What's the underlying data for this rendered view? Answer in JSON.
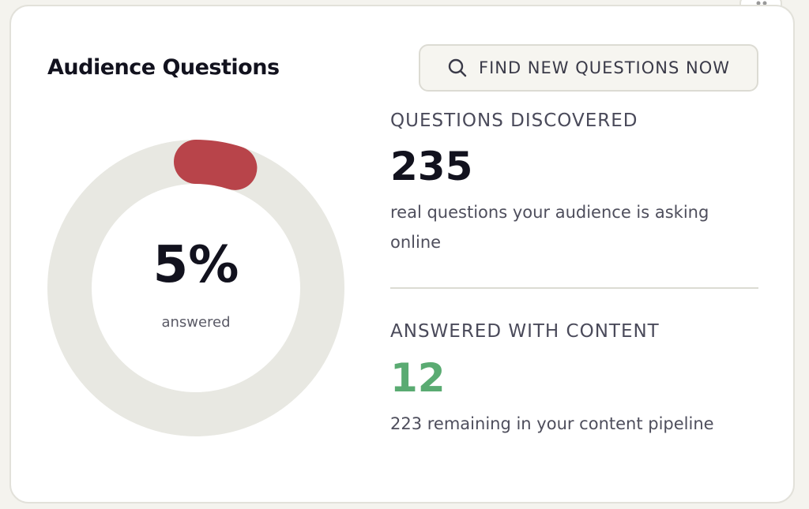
{
  "header": {
    "title": "Audience Questions",
    "button": "FIND NEW QUESTIONS NOW"
  },
  "progress": {
    "value": 5,
    "value_label": "5%",
    "caption": "answered"
  },
  "stats": [
    {
      "label": "QUESTIONS DISCOVERED",
      "value": "235",
      "description": "real questions your audience is asking online"
    },
    {
      "label": "ANSWERED WITH CONTENT",
      "value": "12",
      "description": "223 remaining in your content pipeline"
    }
  ]
}
